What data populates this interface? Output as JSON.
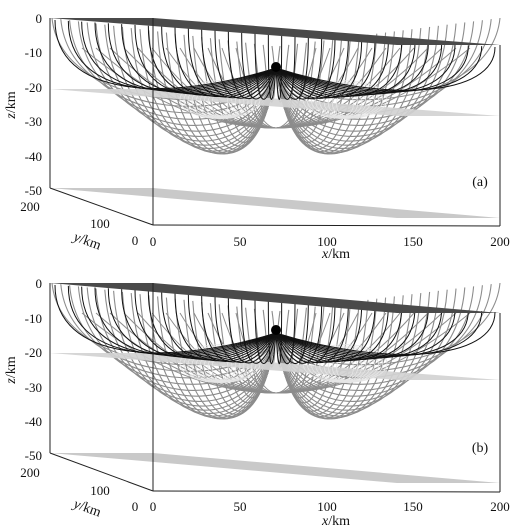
{
  "panels": [
    {
      "id": "a",
      "label": "(a)",
      "z_axis": {
        "label_var": "z",
        "label_unit": "/km",
        "ticks": [
          "0",
          "-10",
          "-20",
          "-30",
          "-40",
          "-50"
        ]
      },
      "y_axis": {
        "label_var": "y",
        "label_unit": "/km",
        "ticks": [
          "200",
          "100",
          "0"
        ]
      },
      "x_axis": {
        "label_var": "x",
        "label_unit": "/km",
        "ticks": [
          "0",
          "50",
          "100",
          "150",
          "200"
        ]
      },
      "source_depth_km": -13
    },
    {
      "id": "b",
      "label": "(b)",
      "z_axis": {
        "label_var": "z",
        "label_unit": "/km",
        "ticks": [
          "0",
          "-10",
          "-20",
          "-30",
          "-40",
          "-50"
        ]
      },
      "y_axis": {
        "label_var": "y",
        "label_unit": "/km",
        "ticks": [
          "200",
          "100",
          "0"
        ]
      },
      "x_axis": {
        "label_var": "x",
        "label_unit": "/km",
        "ticks": [
          "0",
          "50",
          "100",
          "150",
          "200"
        ]
      },
      "source_depth_km": -16
    }
  ],
  "colors": {
    "surface": "#4a4a4a",
    "interface": "#cfcfcf",
    "ray_shallow": "#111111",
    "ray_deep": "#8c8c8c",
    "mesh": "#e6e6e6",
    "source": "#000000"
  }
}
